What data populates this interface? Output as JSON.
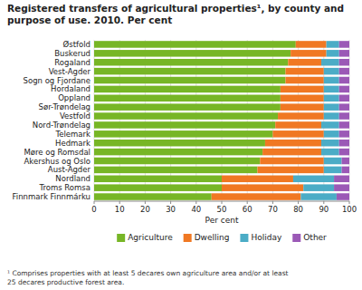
{
  "chart_data": {
    "type": "bar",
    "orientation": "horizontal",
    "stacked": true,
    "title": "Registered transfers of agricultural properties¹, by county and\npurpose of use. 2010. Per cent",
    "xlabel": "Per cent",
    "footnote": "¹ Comprises properties with at least 5 decares own agriculture area and/or at least\n25 decares productive forest area.",
    "categories": [
      "Finnmark Finnmárku",
      "Troms Romsa",
      "Nordland",
      "Aust-Agder",
      "Akershus og Oslo",
      "Møre og Romsdal",
      "Hedmark",
      "Telemark",
      "Nord-Trøndelag",
      "Vestfold",
      "Sør-Trøndelag",
      "Oppland",
      "Hordaland",
      "Sogn og Fjordane",
      "Vest-Agder",
      "Rogaland",
      "Buskerud",
      "Østfold"
    ],
    "series": [
      {
        "name": "Agriculture",
        "color": "#77b626",
        "values": [
          46,
          50,
          50,
          64,
          65,
          66,
          67,
          70,
          71,
          72,
          73,
          73,
          73,
          75,
          75,
          76,
          77,
          79
        ]
      },
      {
        "name": "Dwelling",
        "color": "#f07823",
        "values": [
          35,
          32,
          28,
          26,
          25,
          23,
          22,
          20,
          18,
          18,
          17,
          17,
          17,
          15,
          15,
          13,
          14,
          12
        ]
      },
      {
        "name": "Holiday",
        "color": "#4bacc6",
        "values": [
          14,
          12,
          16,
          7,
          7,
          7,
          7,
          6,
          7,
          6,
          6,
          6,
          6,
          6,
          6,
          7,
          5,
          5
        ]
      },
      {
        "name": "Other",
        "color": "#9b59b6",
        "values": [
          5,
          6,
          6,
          3,
          3,
          4,
          4,
          4,
          4,
          4,
          4,
          4,
          4,
          4,
          4,
          4,
          4,
          4
        ]
      }
    ],
    "xlim": [
      0,
      100
    ],
    "xticks": [
      0,
      10,
      20,
      30,
      40,
      50,
      60,
      70,
      80,
      90,
      100
    ],
    "grid": true,
    "legend": "bottom"
  }
}
